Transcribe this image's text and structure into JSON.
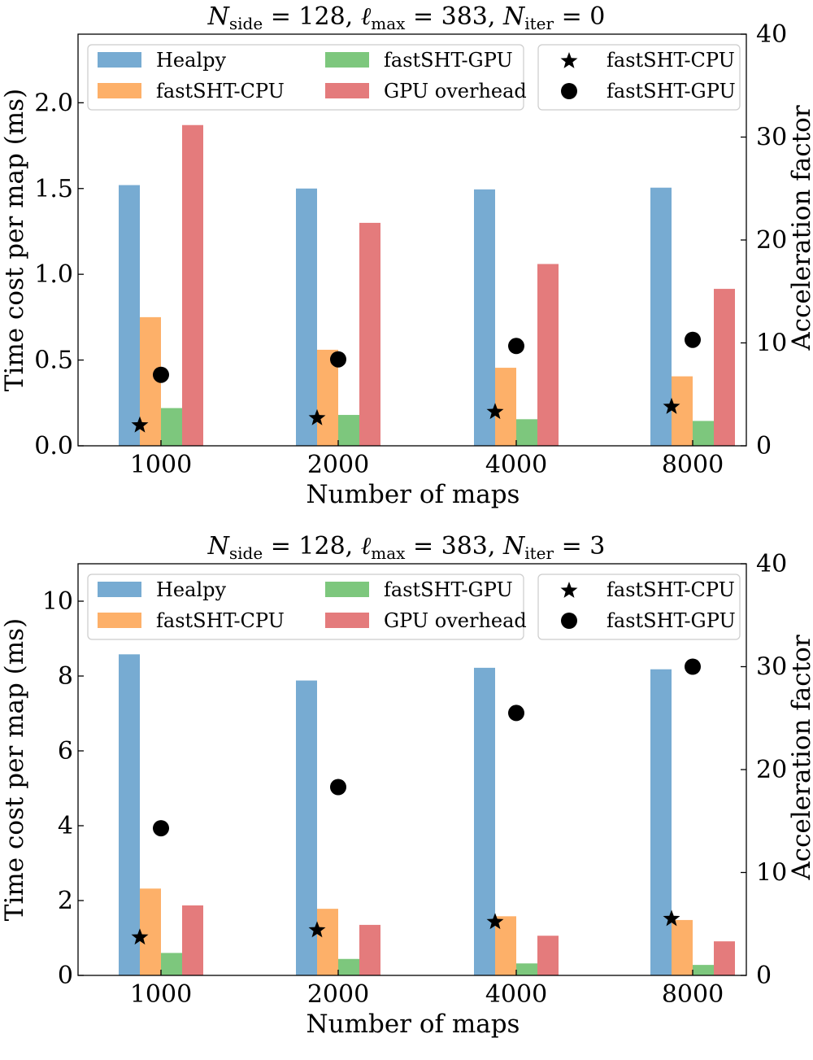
{
  "colors": {
    "healpy": "#77abd2",
    "fastsht_cpu": "#fdb069",
    "fastsht_gpu": "#7dc77d",
    "gpu_overhead": "#e47b7c",
    "marker": "#000000"
  },
  "chart_data": [
    {
      "type": "bar",
      "title": {
        "main": "N",
        "sub_side": "side",
        "eq1": " = 128, ",
        "ell": "ℓ",
        "sub_max": "max",
        "eq2": " = 383, ",
        "n2": "N",
        "sub_iter": "iter",
        "eq3": " = 0"
      },
      "xlabel": "Number of maps",
      "ylabel": "Time cost per map (ms)",
      "y2label": "Acceleration factor",
      "categories": [
        "1000",
        "2000",
        "4000",
        "8000"
      ],
      "ylim": [
        0,
        2.4
      ],
      "yticks": [
        0.0,
        0.5,
        1.0,
        1.5,
        2.0
      ],
      "ytick_labels": [
        "0.0",
        "0.5",
        "1.0",
        "1.5",
        "2.0"
      ],
      "y2lim": [
        0,
        40
      ],
      "y2ticks": [
        0,
        10,
        20,
        30,
        40
      ],
      "y2tick_labels": [
        "0",
        "10",
        "20",
        "30",
        "40"
      ],
      "series": [
        {
          "name": "Healpy",
          "key": "healpy",
          "values": [
            1.52,
            1.5,
            1.495,
            1.505
          ]
        },
        {
          "name": "fastSHT-CPU",
          "key": "fastsht_cpu",
          "values": [
            0.75,
            0.56,
            0.455,
            0.405
          ]
        },
        {
          "name": "fastSHT-GPU",
          "key": "fastsht_gpu",
          "values": [
            0.22,
            0.18,
            0.155,
            0.145
          ]
        },
        {
          "name": "GPU overhead",
          "key": "gpu_overhead",
          "values": [
            1.87,
            1.3,
            1.06,
            0.915
          ]
        }
      ],
      "markers": [
        {
          "name": "fastSHT-CPU",
          "shape": "star",
          "values": [
            2.0,
            2.7,
            3.3,
            3.8
          ]
        },
        {
          "name": "fastSHT-GPU",
          "shape": "circle",
          "values": [
            6.9,
            8.4,
            9.7,
            10.3
          ]
        }
      ]
    },
    {
      "type": "bar",
      "title": {
        "main": "N",
        "sub_side": "side",
        "eq1": " = 128, ",
        "ell": "ℓ",
        "sub_max": "max",
        "eq2": " = 383, ",
        "n2": "N",
        "sub_iter": "iter",
        "eq3": " = 3"
      },
      "xlabel": "Number of maps",
      "ylabel": "Time cost per map (ms)",
      "y2label": "Acceleration factor",
      "categories": [
        "1000",
        "2000",
        "4000",
        "8000"
      ],
      "ylim": [
        0,
        11
      ],
      "yticks": [
        0,
        2,
        4,
        6,
        8,
        10
      ],
      "ytick_labels": [
        "0",
        "2",
        "4",
        "6",
        "8",
        "10"
      ],
      "y2lim": [
        0,
        40
      ],
      "y2ticks": [
        0,
        10,
        20,
        30,
        40
      ],
      "y2tick_labels": [
        "0",
        "10",
        "20",
        "30",
        "40"
      ],
      "series": [
        {
          "name": "Healpy",
          "key": "healpy",
          "values": [
            8.58,
            7.88,
            8.22,
            8.18
          ]
        },
        {
          "name": "fastSHT-CPU",
          "key": "fastsht_cpu",
          "values": [
            2.32,
            1.78,
            1.58,
            1.48
          ]
        },
        {
          "name": "fastSHT-GPU",
          "key": "fastsht_gpu",
          "values": [
            0.6,
            0.44,
            0.32,
            0.28
          ]
        },
        {
          "name": "GPU overhead",
          "key": "gpu_overhead",
          "values": [
            1.87,
            1.35,
            1.06,
            0.91
          ]
        }
      ],
      "markers": [
        {
          "name": "fastSHT-CPU",
          "shape": "star",
          "values": [
            3.7,
            4.4,
            5.2,
            5.5
          ]
        },
        {
          "name": "fastSHT-GPU",
          "shape": "circle",
          "values": [
            14.3,
            18.3,
            25.5,
            30.0
          ]
        }
      ]
    }
  ]
}
